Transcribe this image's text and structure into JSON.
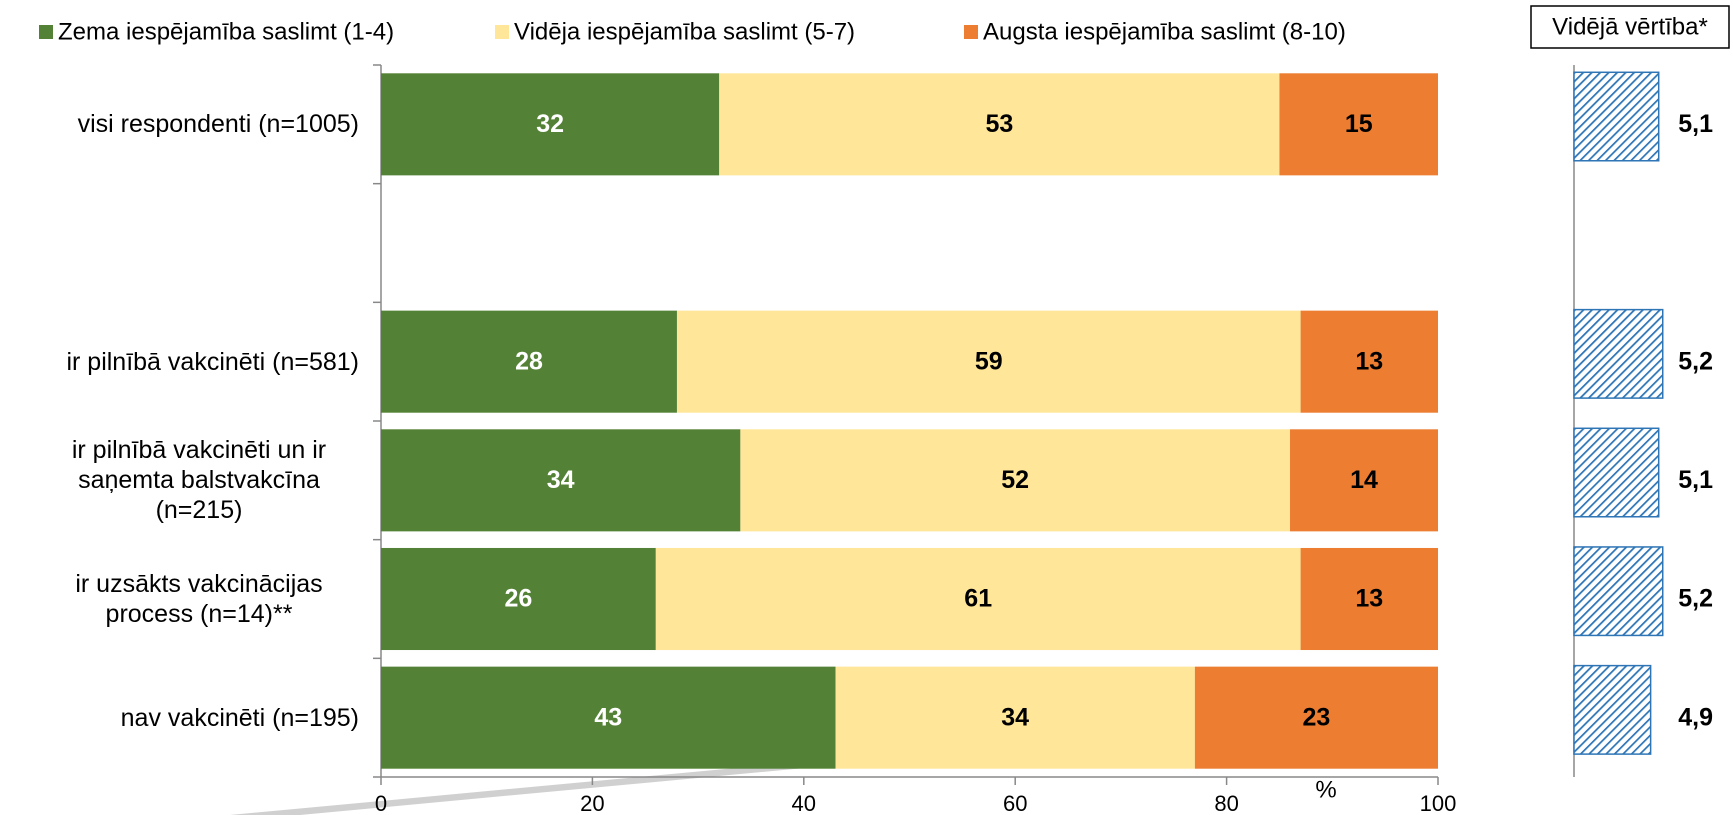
{
  "chart_data": [
    {
      "type": "stacked-bar",
      "orientation": "horizontal",
      "categories": [
        "visi respondenti (n=1005)",
        null,
        "ir pilnībā vakcinēti (n=581)",
        "ir pilnībā vakcinēti un ir saņemta balstvakcīna (n=215)",
        "ir uzsākts vakcinācijas process (n=14)**",
        "nav vakcinēti (n=195)"
      ],
      "series": [
        {
          "name": "Zema iespējamība saslimt (1-4)",
          "color": "#538135",
          "label_color": "#ffffff",
          "values": [
            32,
            null,
            28,
            34,
            26,
            43
          ]
        },
        {
          "name": "Vidēja iespējamība saslimt (5-7)",
          "color": "#ffe699",
          "label_color": "#000000",
          "values": [
            53,
            null,
            59,
            52,
            61,
            34
          ]
        },
        {
          "name": "Augsta iespējamība saslimt (8-10)",
          "color": "#ed7d31",
          "label_color": "#000000",
          "values": [
            15,
            null,
            13,
            14,
            13,
            23
          ]
        }
      ],
      "xlim": [
        0,
        100
      ],
      "xticks": [
        0,
        20,
        40,
        60,
        80,
        100
      ],
      "xlabel": "%",
      "legend": "top"
    },
    {
      "type": "bar",
      "orientation": "horizontal",
      "title": "Vidējā vērtība*",
      "values": [
        5.1,
        null,
        5.2,
        5.1,
        5.2,
        4.9
      ],
      "value_labels": [
        "5,1",
        null,
        "5,2",
        "5,1",
        "5,2",
        "4,9"
      ],
      "color": "#2e75b6",
      "hatch": true,
      "xlim": [
        3,
        6
      ]
    }
  ]
}
